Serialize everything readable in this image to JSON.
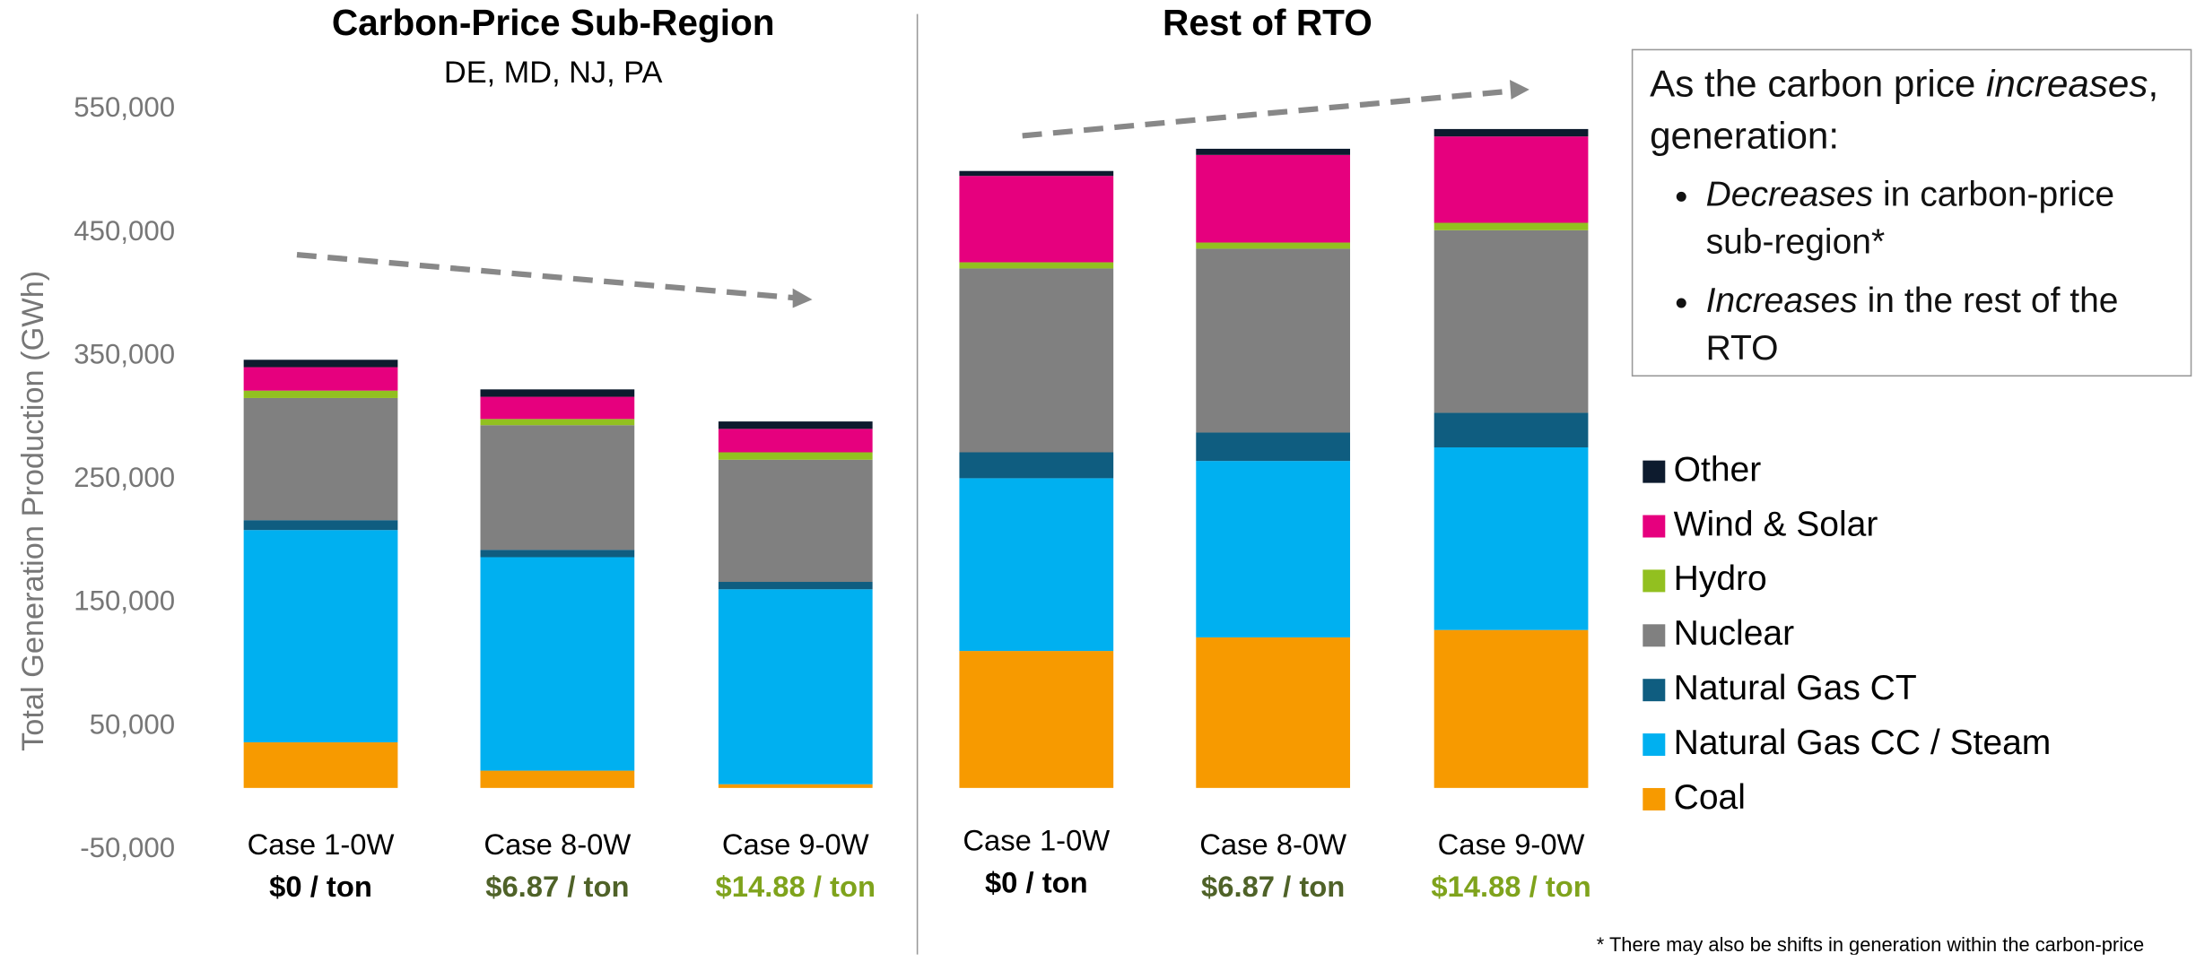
{
  "chart_data": {
    "type": "bar",
    "stacked": true,
    "y_label": "Total Generation Production (GWh)",
    "ylim": [
      -50000,
      600000
    ],
    "yticks": [
      {
        "value": -50000,
        "label": "-50,000"
      },
      {
        "value": 50000,
        "label": "50,000"
      },
      {
        "value": 150000,
        "label": "150,000"
      },
      {
        "value": 250000,
        "label": "250,000"
      },
      {
        "value": 350000,
        "label": "350,000"
      },
      {
        "value": 450000,
        "label": "450,000"
      },
      {
        "value": 550000,
        "label": "550,000"
      }
    ],
    "panels": [
      {
        "title": "Carbon-Price Sub-Region",
        "subtitle": "DE, MD, NJ, PA",
        "categories": [
          "Case 1-0W",
          "Case 8-0W",
          "Case 9-0W"
        ],
        "price_labels": [
          "$0 / ton",
          "$6.87 / ton",
          "$14.88 / ton"
        ],
        "price_colors": [
          "#000000",
          "#4f6228",
          "#7fa31c"
        ]
      },
      {
        "title": "Rest of RTO",
        "categories": [
          "Case 1-0W",
          "Case 8-0W",
          "Case 9-0W"
        ],
        "price_labels": [
          "$0 / ton",
          "$6.87 / ton",
          "$14.88 / ton"
        ],
        "price_colors": [
          "#000000",
          "#4f6228",
          "#7fa31c"
        ]
      }
    ],
    "series": [
      {
        "name": "Coal",
        "color": "#f79a00",
        "values": [
          37000,
          14000,
          3000,
          111000,
          122000,
          128000
        ]
      },
      {
        "name": "Natural Gas CC / Steam",
        "color": "#00b0f0",
        "values": [
          172000,
          173000,
          158000,
          140000,
          143000,
          148000
        ]
      },
      {
        "name": "Natural Gas CT",
        "color": "#0f5d80",
        "values": [
          8000,
          6000,
          6000,
          21000,
          23000,
          28000
        ]
      },
      {
        "name": "Nuclear",
        "color": "#808080",
        "values": [
          99000,
          101000,
          99000,
          149000,
          149000,
          148000
        ]
      },
      {
        "name": "Hydro",
        "color": "#92c020",
        "values": [
          6000,
          5000,
          6000,
          5000,
          5000,
          6000
        ]
      },
      {
        "name": "Wind & Solar",
        "color": "#e6007e",
        "values": [
          19000,
          18000,
          19000,
          70000,
          71000,
          70000
        ]
      },
      {
        "name": "Other",
        "color": "#0d1b2e",
        "values": [
          6000,
          6000,
          6000,
          4000,
          5000,
          6000
        ]
      }
    ],
    "note": {
      "heading": [
        {
          "text": "As the carbon price "
        },
        {
          "text": "increases",
          "italic": true
        },
        {
          "text": ", generation:"
        }
      ],
      "bullets": [
        [
          {
            "text": "Decreases",
            "italic": true
          },
          {
            "text": " in carbon-price sub-region*"
          }
        ],
        [
          {
            "text": "Increases",
            "italic": true
          },
          {
            "text": " in the rest of the RTO"
          }
        ]
      ]
    },
    "footnote": "* There may also be shifts in generation within the carbon-price"
  }
}
